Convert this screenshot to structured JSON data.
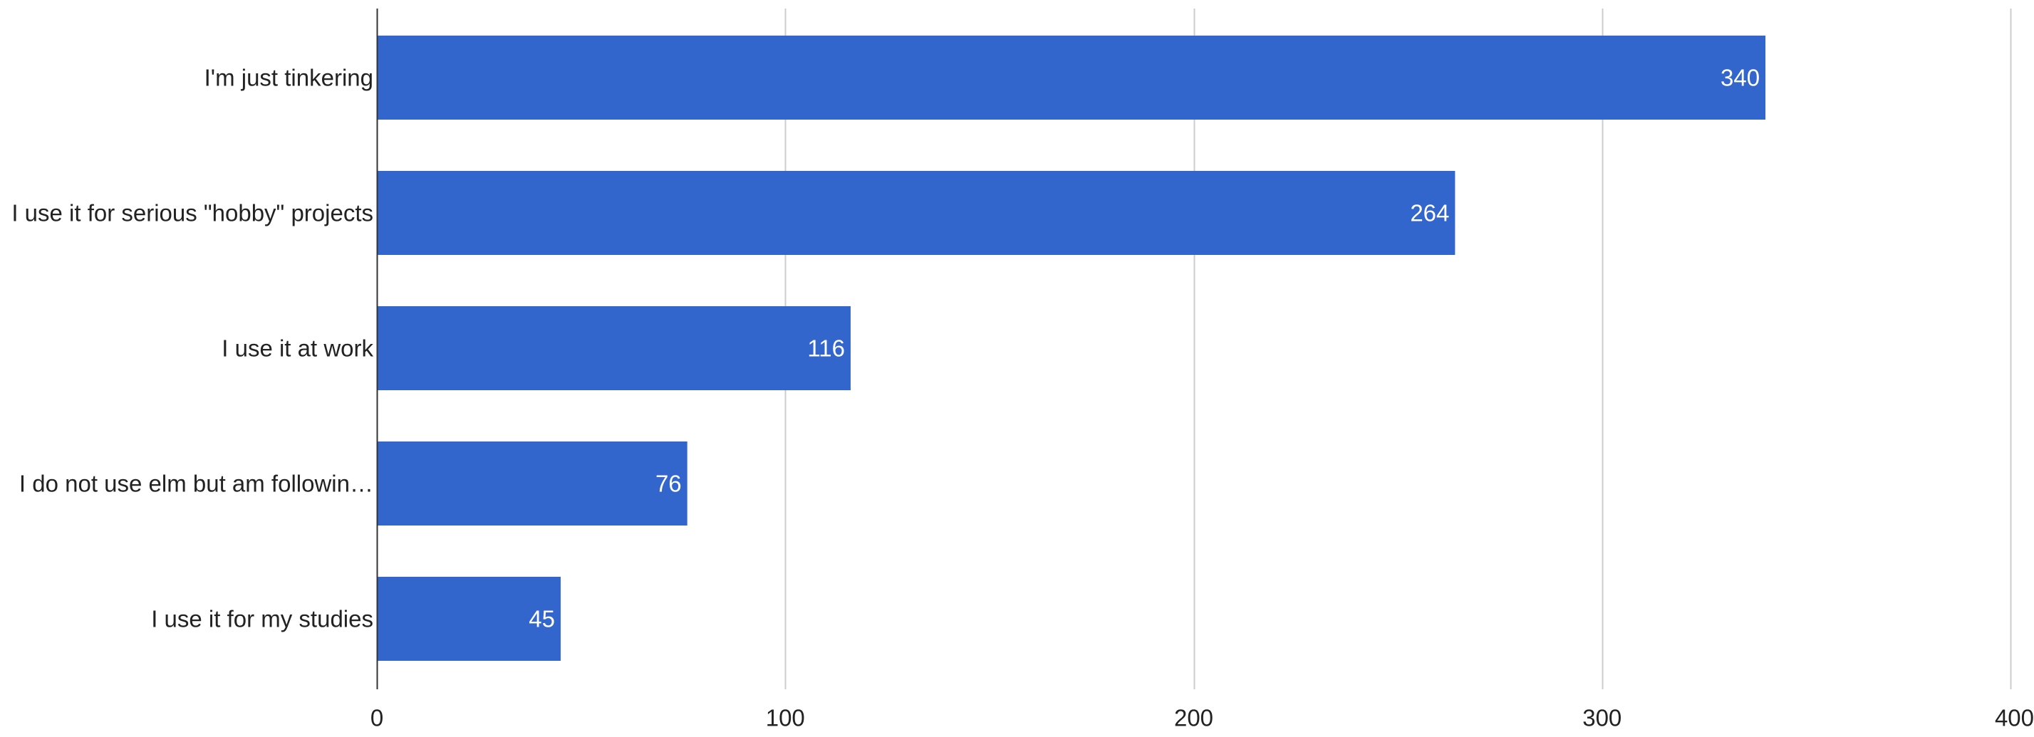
{
  "chart_data": {
    "type": "bar",
    "orientation": "horizontal",
    "title": "",
    "xlabel": "",
    "ylabel": "",
    "categories": [
      "I'm just tinkering",
      "I use it for serious \"hobby\" projects",
      "I use it at work",
      "I do not use elm but am followin…",
      "I use it for my studies"
    ],
    "values": [
      340,
      264,
      116,
      76,
      45
    ],
    "data_labels": [
      "340",
      "264",
      "116",
      "76",
      "45"
    ],
    "xlim": [
      0,
      400
    ],
    "x_ticks": [
      0,
      100,
      200,
      300,
      400
    ],
    "x_tick_labels": [
      "0",
      "100",
      "200",
      "300",
      "400"
    ],
    "grid": "vertical",
    "legend": "none",
    "colors": {
      "bar": "#3366cc",
      "grid": "#cccccc",
      "axis": "#333333",
      "text": "#222222",
      "bar_label": "#ffffff"
    }
  }
}
